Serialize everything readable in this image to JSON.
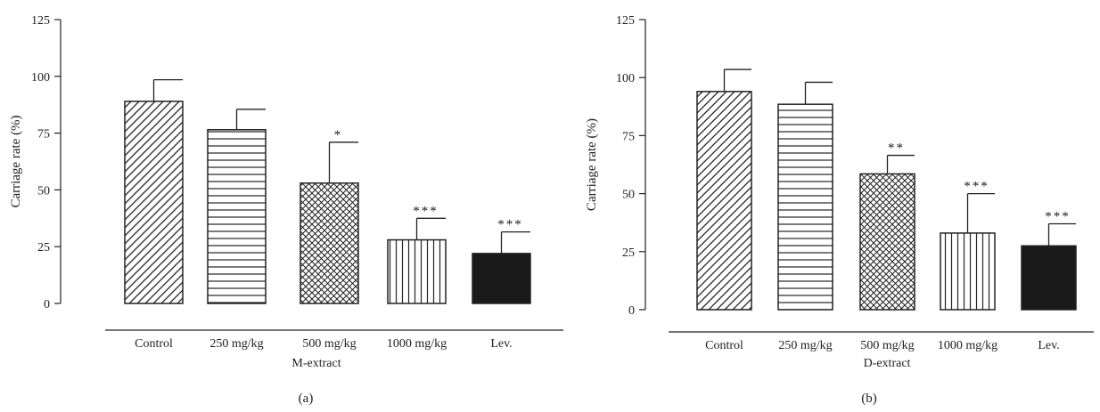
{
  "chart_data": [
    {
      "type": "bar",
      "panel_label": "(a)",
      "ylabel": "Carriage rate (%)",
      "group_label": "M-extract",
      "ylim": [
        0,
        125
      ],
      "yticks": [
        0,
        25,
        50,
        75,
        100,
        125
      ],
      "categories": [
        "Control",
        "250 mg/kg",
        "500 mg/kg",
        "1000 mg/kg",
        "Lev."
      ],
      "values": [
        89,
        76.5,
        53,
        28,
        22
      ],
      "errors": [
        9.5,
        9,
        18,
        9.5,
        9.5
      ],
      "significance": [
        "",
        "",
        "*",
        "***",
        "***"
      ],
      "patterns": [
        "diagonal",
        "horizontal",
        "crosshatch",
        "vertical",
        "solid"
      ],
      "grid": false
    },
    {
      "type": "bar",
      "panel_label": "(b)",
      "ylabel": "Carriage rate (%)",
      "group_label": "D-extract",
      "ylim": [
        0,
        125
      ],
      "yticks": [
        0,
        25,
        50,
        75,
        100,
        125
      ],
      "categories": [
        "Control",
        "250 mg/kg",
        "500 mg/kg",
        "1000 mg/kg",
        "Lev."
      ],
      "values": [
        94,
        88.5,
        58.5,
        33,
        27.5
      ],
      "errors": [
        9.5,
        9.5,
        8,
        17,
        9.5
      ],
      "significance": [
        "",
        "",
        "**",
        "***",
        "***"
      ],
      "patterns": [
        "diagonal",
        "horizontal",
        "crosshatch",
        "vertical",
        "solid"
      ],
      "grid": false
    }
  ],
  "colors": {
    "ink": "#222222",
    "bar_fill": "#ffffff",
    "solid_fill": "#1a1a1a"
  }
}
